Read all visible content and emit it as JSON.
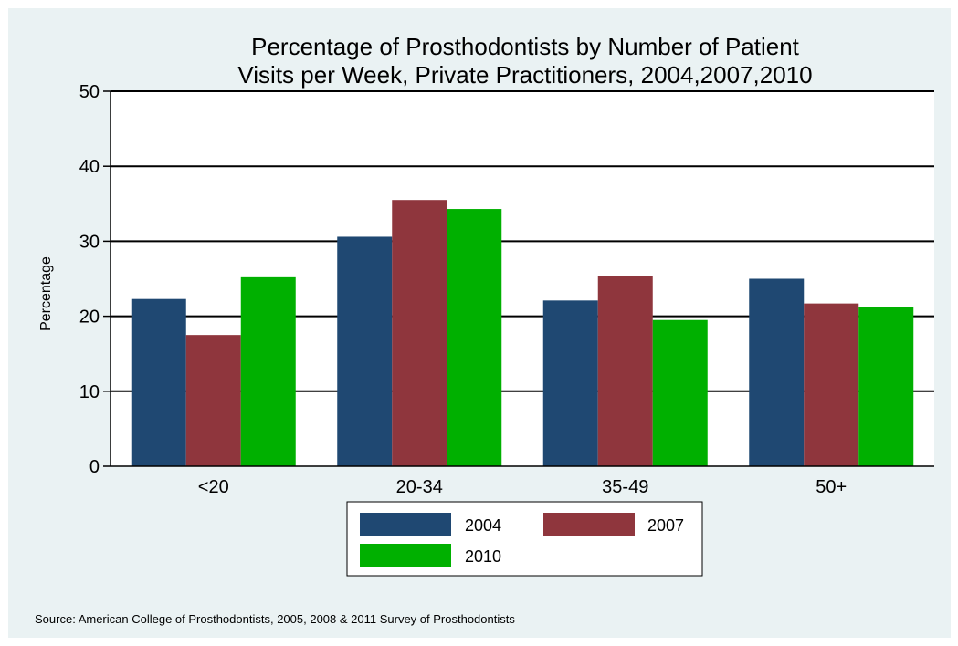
{
  "chart_data": {
    "type": "bar",
    "title": [
      "Percentage of Prosthodontists by Number of Patient",
      "Visits per Week, Private Practitioners, 2004,2007,2010"
    ],
    "ylabel": "Percentage",
    "xlabel": "",
    "ylim": [
      0,
      50
    ],
    "yticks": [
      0,
      10,
      20,
      30,
      40,
      50
    ],
    "categories": [
      "<20",
      "20-34",
      "35-49",
      "50+"
    ],
    "series": [
      {
        "name": "2004",
        "values": [
          22.3,
          30.6,
          22.1,
          25.0
        ],
        "color": "#1f4872"
      },
      {
        "name": "2007",
        "values": [
          17.5,
          35.5,
          25.4,
          21.7
        ],
        "color": "#8f363d"
      },
      {
        "name": "2010",
        "values": [
          25.2,
          34.3,
          19.5,
          21.2
        ],
        "color": "#00b000"
      }
    ],
    "grid": true,
    "legend_position": "bottom"
  },
  "note": "Source: American College of Prosthodontists, 2005, 2008 & 2011 Survey of Prosthodontists",
  "colors": {
    "background": "#eaf2f3",
    "plot_area": "#ffffff",
    "gridline": "#000000"
  }
}
